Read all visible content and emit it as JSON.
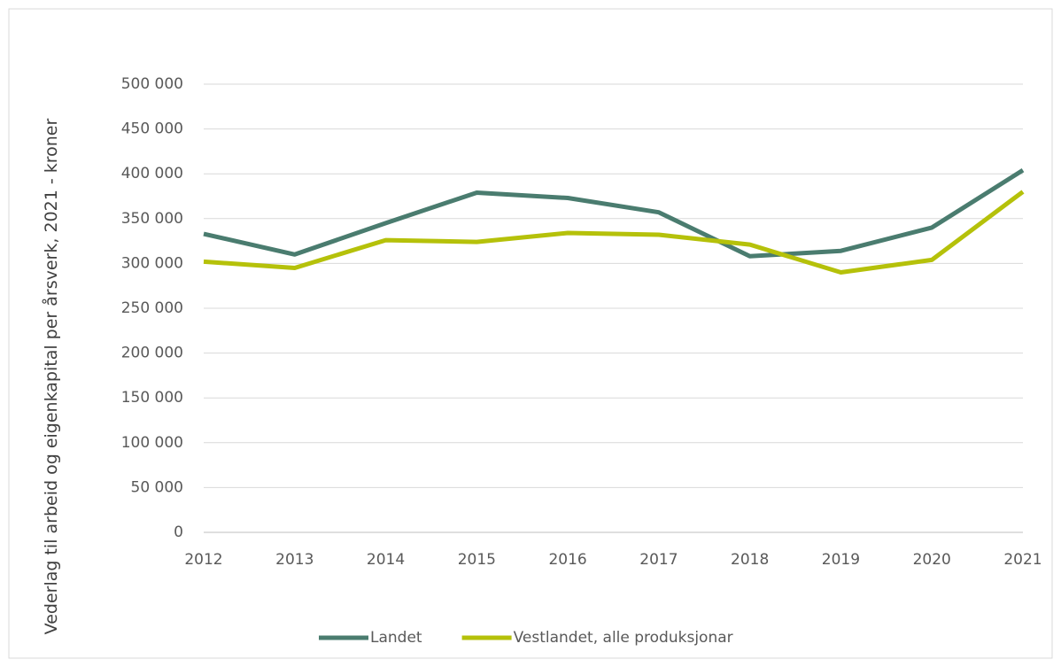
{
  "chart_data": {
    "type": "line",
    "y_label": "Vederlag til arbeid og eigenkapital per årsverk, 2021 - kroner",
    "categories": [
      "2012",
      "2013",
      "2014",
      "2015",
      "2016",
      "2017",
      "2018",
      "2019",
      "2020",
      "2021"
    ],
    "series": [
      {
        "name": "Landet",
        "color": "#4a7c6f",
        "values": [
          333000,
          310000,
          345000,
          379000,
          373000,
          357000,
          308000,
          314000,
          340000,
          404000
        ]
      },
      {
        "name": "Vestlandet, alle produksjonar",
        "color": "#b5c10a",
        "values": [
          302000,
          295000,
          326000,
          324000,
          334000,
          332000,
          321000,
          290000,
          304000,
          380000
        ]
      }
    ],
    "ylim": [
      0,
      500000
    ],
    "yticks": [
      0,
      {
        "value": 50000,
        "label": "50 000"
      },
      {
        "value": 100000,
        "label": "100 000"
      },
      {
        "value": 150000,
        "label": "150 000"
      },
      {
        "value": 200000,
        "label": "200 000"
      },
      {
        "value": 250000,
        "label": "250 000"
      },
      {
        "value": 300000,
        "label": "300 000"
      },
      {
        "value": 350000,
        "label": "350 000"
      },
      {
        "value": 400000,
        "label": "400 000"
      },
      {
        "value": 450000,
        "label": "450 000"
      },
      {
        "value": 500000,
        "label": "500 000"
      }
    ],
    "grid": true,
    "legend": "bottom"
  }
}
